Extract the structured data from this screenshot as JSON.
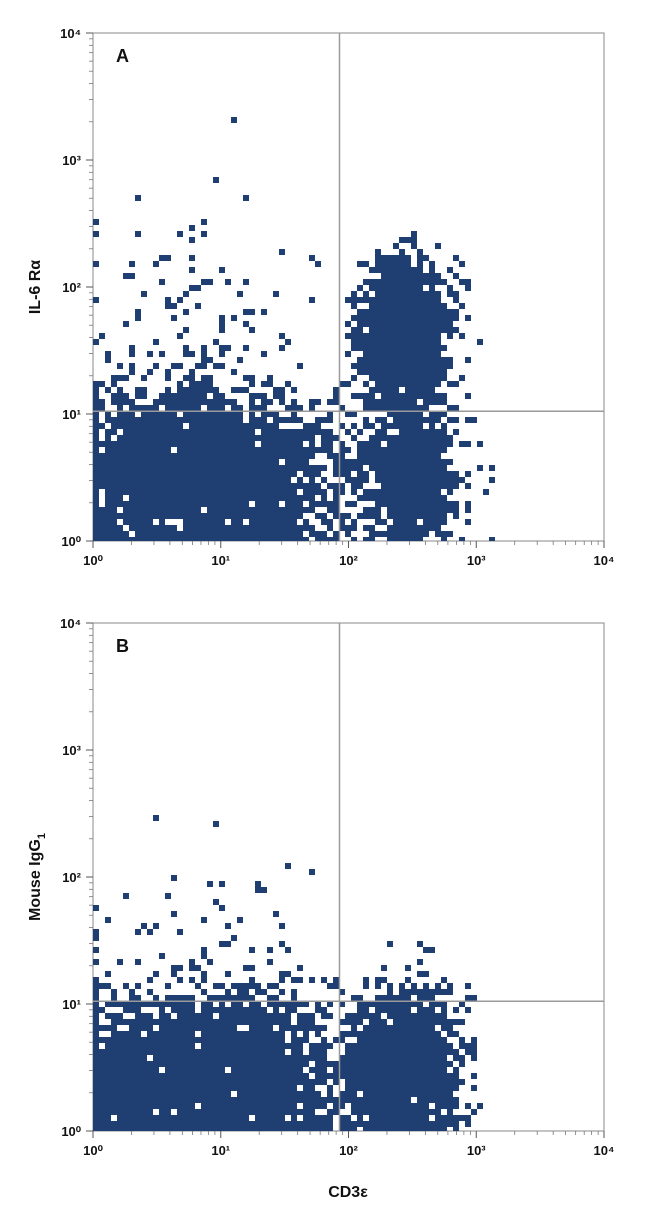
{
  "chart_data": [
    {
      "type": "scatter",
      "panel_label": "A",
      "title": "",
      "xlabel": "",
      "ylabel": "IL-6 Rα",
      "xscale": "log",
      "yscale": "log",
      "xlim": [
        1,
        10000
      ],
      "ylim": [
        1,
        10000
      ],
      "xtick_labels": [
        "10⁰",
        "10¹",
        "10²",
        "10³",
        "10⁴"
      ],
      "ytick_labels": [
        "10⁰",
        "10¹",
        "10²",
        "10³",
        "10⁴"
      ],
      "quadrant_gate": {
        "x": 85,
        "y": 10.5
      },
      "grid": false,
      "point_color": "#1f3f73",
      "populations": [
        {
          "center": [
            7,
            3.2
          ],
          "spread": [
            0.55,
            0.35
          ],
          "count": 3200
        },
        {
          "center": [
            280,
            42
          ],
          "spread": [
            0.17,
            0.27
          ],
          "count": 1500
        },
        {
          "center": [
            300,
            3.6
          ],
          "spread": [
            0.2,
            0.33
          ],
          "count": 900
        },
        {
          "center": [
            6,
            60
          ],
          "spread": [
            0.45,
            0.45
          ],
          "count": 90
        }
      ]
    },
    {
      "type": "scatter",
      "panel_label": "B",
      "title": "",
      "xlabel": "CD3ε",
      "ylabel": "Mouse IgG",
      "ylabel_subscript": "1",
      "xscale": "log",
      "yscale": "log",
      "xlim": [
        1,
        10000
      ],
      "ylim": [
        1,
        10000
      ],
      "xtick_labels": [
        "10⁰",
        "10¹",
        "10²",
        "10³",
        "10⁴"
      ],
      "ytick_labels": [
        "10⁰",
        "10¹",
        "10²",
        "10³",
        "10⁴"
      ],
      "quadrant_gate": {
        "x": 85,
        "y": 10.5
      },
      "grid": false,
      "point_color": "#1f3f73",
      "populations": [
        {
          "center": [
            7,
            2.8
          ],
          "spread": [
            0.6,
            0.33
          ],
          "count": 3200
        },
        {
          "center": [
            280,
            3.3
          ],
          "spread": [
            0.2,
            0.28
          ],
          "count": 1600
        },
        {
          "center": [
            6,
            45
          ],
          "spread": [
            0.4,
            0.35
          ],
          "count": 35
        }
      ]
    }
  ]
}
